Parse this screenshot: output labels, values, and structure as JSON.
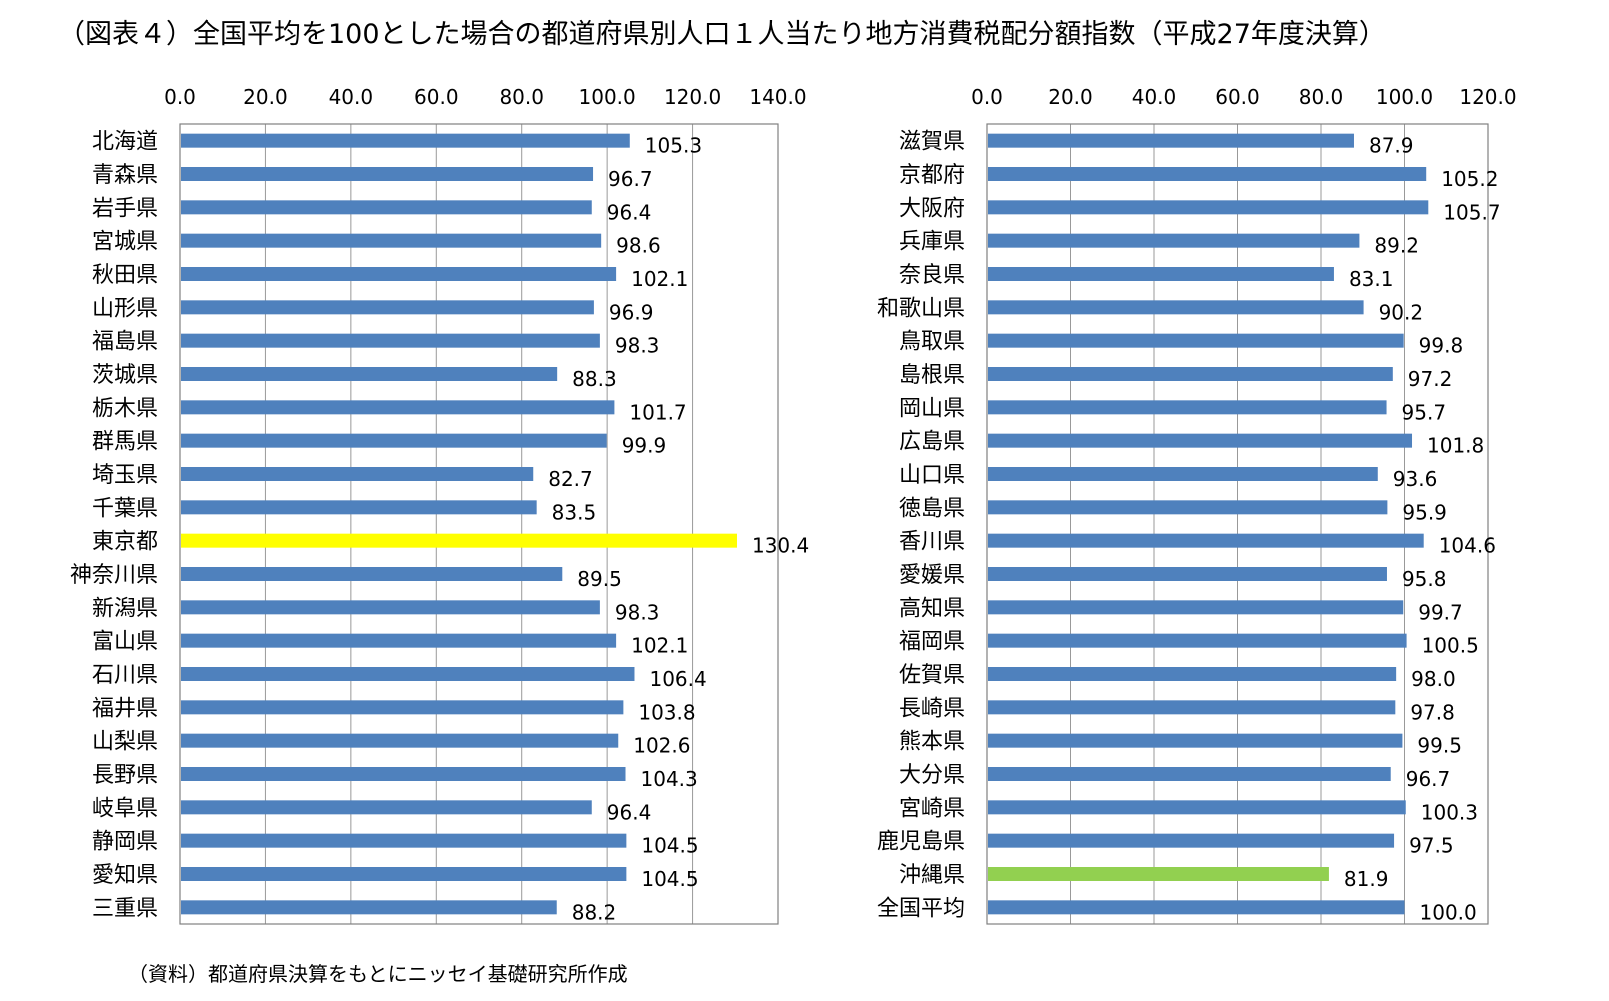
{
  "title": "（図表４）全国平均を100とした場合の都道府県別人口１人当たり地方消費税配分額指数（平成27年度決算）",
  "source": "（資料）都道府県決算をもとにニッセイ基礎研究所作成",
  "colors": {
    "default": "#4F81BD",
    "tokyo": "#FFFF00",
    "okinawa": "#92D050",
    "grid": "#999999",
    "axis": "#808080"
  },
  "chart_data": [
    {
      "type": "bar",
      "orientation": "horizontal",
      "xlim": [
        0,
        140
      ],
      "ticks": [
        "0.0",
        "20.0",
        "40.0",
        "60.0",
        "80.0",
        "100.0",
        "120.0",
        "140.0"
      ],
      "grid": true,
      "categories": [
        "北海道",
        "青森県",
        "岩手県",
        "宮城県",
        "秋田県",
        "山形県",
        "福島県",
        "茨城県",
        "栃木県",
        "群馬県",
        "埼玉県",
        "千葉県",
        "東京都",
        "神奈川県",
        "新潟県",
        "富山県",
        "石川県",
        "福井県",
        "山梨県",
        "長野県",
        "岐阜県",
        "静岡県",
        "愛知県",
        "三重県"
      ],
      "values": [
        105.3,
        96.7,
        96.4,
        98.6,
        102.1,
        96.9,
        98.3,
        88.3,
        101.7,
        99.9,
        82.7,
        83.5,
        130.4,
        89.5,
        98.3,
        102.1,
        106.4,
        103.8,
        102.6,
        104.3,
        96.4,
        104.5,
        104.5,
        88.2
      ],
      "labels": [
        "105.3",
        "96.7",
        "96.4",
        "98.6",
        "102.1",
        "96.9",
        "98.3",
        "88.3",
        "101.7",
        "99.9",
        "82.7",
        "83.5",
        "130.4",
        "89.5",
        "98.3",
        "102.1",
        "106.4",
        "103.8",
        "102.6",
        "104.3",
        "96.4",
        "104.5",
        "104.5",
        "88.2"
      ],
      "highlight": {
        "東京都": "#FFFF00"
      }
    },
    {
      "type": "bar",
      "orientation": "horizontal",
      "xlim": [
        0,
        120
      ],
      "ticks": [
        "0.0",
        "20.0",
        "40.0",
        "60.0",
        "80.0",
        "100.0",
        "120.0"
      ],
      "grid": true,
      "categories": [
        "滋賀県",
        "京都府",
        "大阪府",
        "兵庫県",
        "奈良県",
        "和歌山県",
        "鳥取県",
        "島根県",
        "岡山県",
        "広島県",
        "山口県",
        "徳島県",
        "香川県",
        "愛媛県",
        "高知県",
        "福岡県",
        "佐賀県",
        "長崎県",
        "熊本県",
        "大分県",
        "宮崎県",
        "鹿児島県",
        "沖縄県",
        "全国平均"
      ],
      "values": [
        87.9,
        105.2,
        105.7,
        89.2,
        83.1,
        90.2,
        99.8,
        97.2,
        95.7,
        101.8,
        93.6,
        95.9,
        104.6,
        95.8,
        99.7,
        100.5,
        98.0,
        97.8,
        99.5,
        96.7,
        100.3,
        97.5,
        81.9,
        100.0
      ],
      "labels": [
        "87.9",
        "105.2",
        "105.7",
        "89.2",
        "83.1",
        "90.2",
        "99.8",
        "97.2",
        "95.7",
        "101.8",
        "93.6",
        "95.9",
        "104.6",
        "95.8",
        "99.7",
        "100.5",
        "98.0",
        "97.8",
        "99.5",
        "96.7",
        "100.3",
        "97.5",
        "81.9",
        "100.0"
      ],
      "highlight": {
        "沖縄県": "#92D050"
      }
    }
  ]
}
